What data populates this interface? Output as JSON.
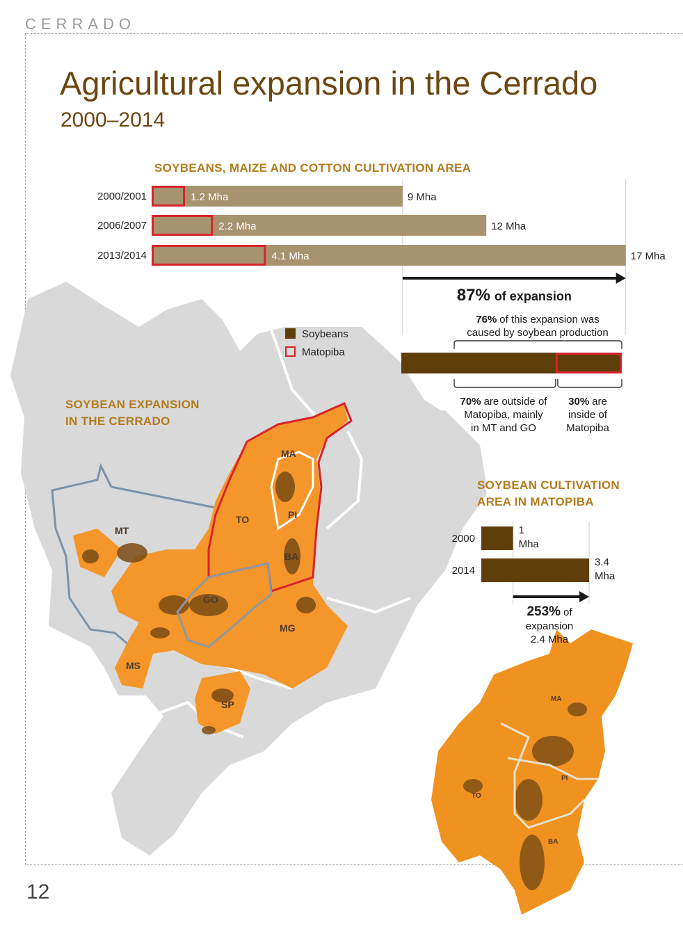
{
  "header": {
    "label": "CERRADO"
  },
  "page": {
    "title": "Agricultural expansion in the Cerrado",
    "subtitle": "2000–2014",
    "number": "12"
  },
  "legend": {
    "soybeans": {
      "label": "Soybeans",
      "color": "#5e3f0c"
    },
    "matopiba": {
      "label": "Matopiba",
      "color": "#d9232a"
    }
  },
  "map": {
    "heading_line1": "SOYBEAN EXPANSION",
    "heading_line2": "IN THE CERRADO",
    "state_labels": [
      "MA",
      "TO",
      "PI",
      "BA",
      "MT",
      "GO",
      "MG",
      "MS",
      "SP"
    ],
    "inset_state_labels": [
      "MA",
      "PI",
      "TO",
      "BA"
    ]
  },
  "chart_data": [
    {
      "type": "bar",
      "title": "SOYBEANS, MAIZE AND COTTON CULTIVATION AREA",
      "categories": [
        "2000/2001",
        "2006/2007",
        "2013/2014"
      ],
      "series": [
        {
          "name": "",
          "values": [
            9,
            12,
            17
          ],
          "labels": [
            "9 Mha",
            "12 Mha",
            "17 Mha"
          ]
        },
        {
          "name": "Matopiba",
          "values": [
            1.2,
            2.2,
            4.1
          ],
          "labels": [
            "1.2 Mha",
            "2.2 Mha",
            "4.1 Mha"
          ]
        }
      ],
      "xlim": [
        0,
        17
      ],
      "annotation": {
        "expansion_pct": "87%",
        "expansion_text": "of expansion",
        "soy_pct": "76%",
        "soy_text_1": "of this expansion was",
        "soy_text_2": "caused by soybean production",
        "breakdown": [
          {
            "name": "outside Matopiba",
            "percent": 70,
            "pct": "70%",
            "lines": [
              "are outside of",
              "Matopiba, mainly",
              "in MT and GO"
            ]
          },
          {
            "name": "inside Matopiba",
            "percent": 30,
            "pct": "30%",
            "lines": [
              "are",
              "inside of",
              "Matopiba"
            ]
          }
        ]
      },
      "colors": {
        "bar": "#a89370",
        "highlight": "#d9232a",
        "soy": "#5e3f0c"
      }
    },
    {
      "type": "bar",
      "title": "SOYBEAN CULTIVATION AREA IN MATOPIBA",
      "title_line1": "SOYBEAN CULTIVATION",
      "title_line2": "AREA IN MATOPIBA",
      "categories": [
        "2000",
        "2014"
      ],
      "values": [
        1,
        3.4
      ],
      "value_labels": [
        [
          "1",
          "Mha"
        ],
        [
          "3.4",
          "Mha"
        ]
      ],
      "xlim": [
        0,
        3.4
      ],
      "annotation": {
        "pct": "253%",
        "text_1": "of",
        "text_2": "expansion",
        "text_3": "2.4 Mha"
      },
      "colors": {
        "bar": "#5e3f0c"
      }
    }
  ]
}
